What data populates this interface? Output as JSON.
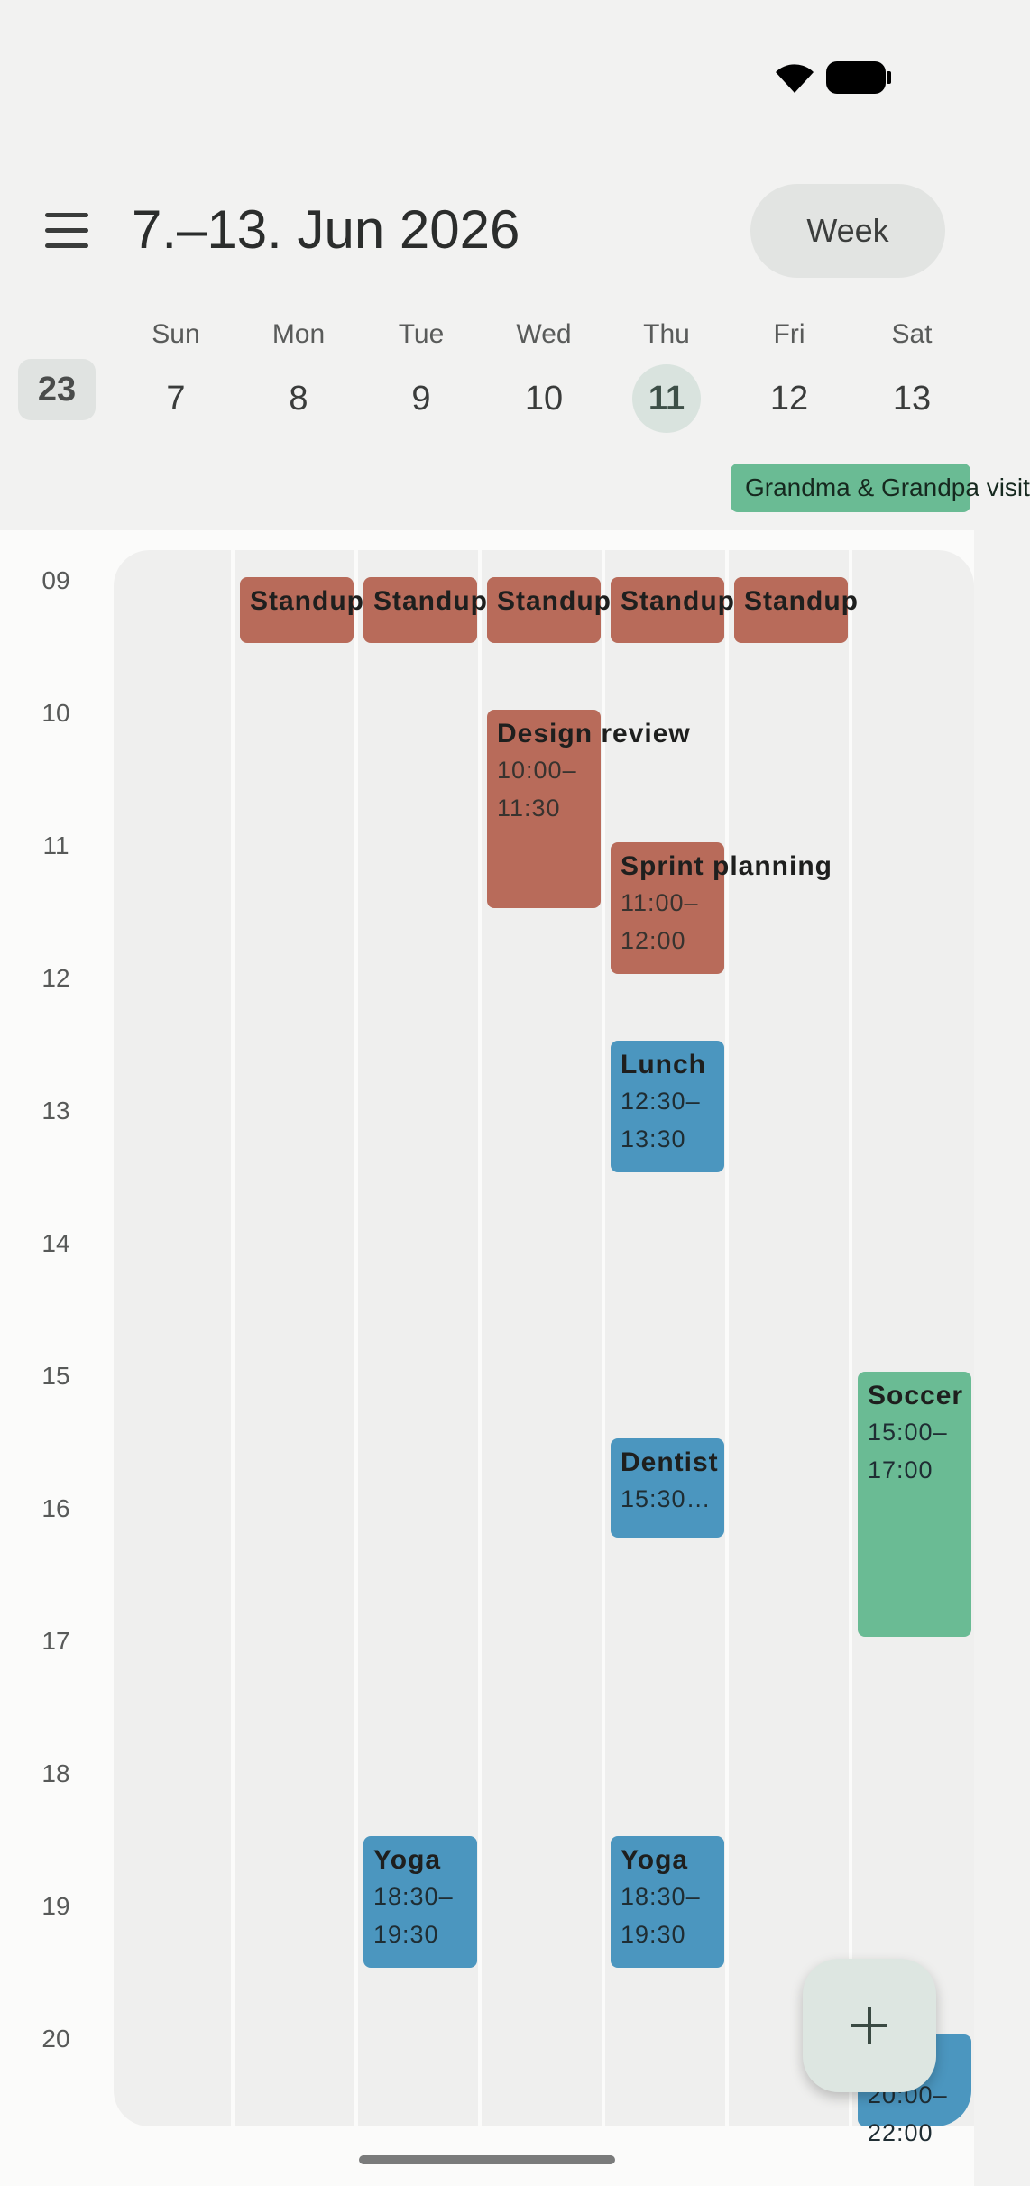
{
  "header": {
    "title": "7.–13. Jun 2026",
    "view_button": "Week"
  },
  "week_number": "23",
  "days": [
    {
      "dow": "Sun",
      "num": "7"
    },
    {
      "dow": "Mon",
      "num": "8"
    },
    {
      "dow": "Tue",
      "num": "9"
    },
    {
      "dow": "Wed",
      "num": "10"
    },
    {
      "dow": "Thu",
      "num": "11",
      "today": true
    },
    {
      "dow": "Fri",
      "num": "12"
    },
    {
      "dow": "Sat",
      "num": "13"
    }
  ],
  "allday_event": "Grandma & Grandpa visit",
  "hours": [
    "09",
    "10",
    "11",
    "12",
    "13",
    "14",
    "15",
    "16",
    "17",
    "18",
    "19",
    "20"
  ],
  "events": {
    "standup_mon": "Standup",
    "standup_tue": "Standup",
    "standup_wed": "Standup",
    "standup_thu": "Standup",
    "standup_fri": "Standup",
    "design": {
      "title": "Design review",
      "time1": "10:00–",
      "time2": "11:30"
    },
    "sprint": {
      "title": "Sprint planning",
      "time1": "11:00–",
      "time2": "12:00"
    },
    "lunch": {
      "title": "Lunch",
      "time1": "12:30–",
      "time2": "13:30"
    },
    "dentist": {
      "title": "Dentist",
      "time1": "15:30…"
    },
    "soccer": {
      "title": "Soccer",
      "time1": "15:00–",
      "time2": "17:00"
    },
    "yoga_tue": {
      "title": "Yoga",
      "time1": "18:30–",
      "time2": "19:30"
    },
    "yoga_thu": {
      "title": "Yoga",
      "time1": "18:30–",
      "time2": "19:30"
    },
    "sat_evening": {
      "title": "…",
      "time1": "20:00–",
      "time2": "22:00"
    }
  },
  "colors": {
    "work": "#b86b5a",
    "personal": "#4b96bf",
    "family": "#6abb94"
  },
  "icons": {
    "menu": "menu-icon",
    "add": "plus-icon",
    "wifi": "wifi-icon",
    "battery": "battery-icon"
  }
}
